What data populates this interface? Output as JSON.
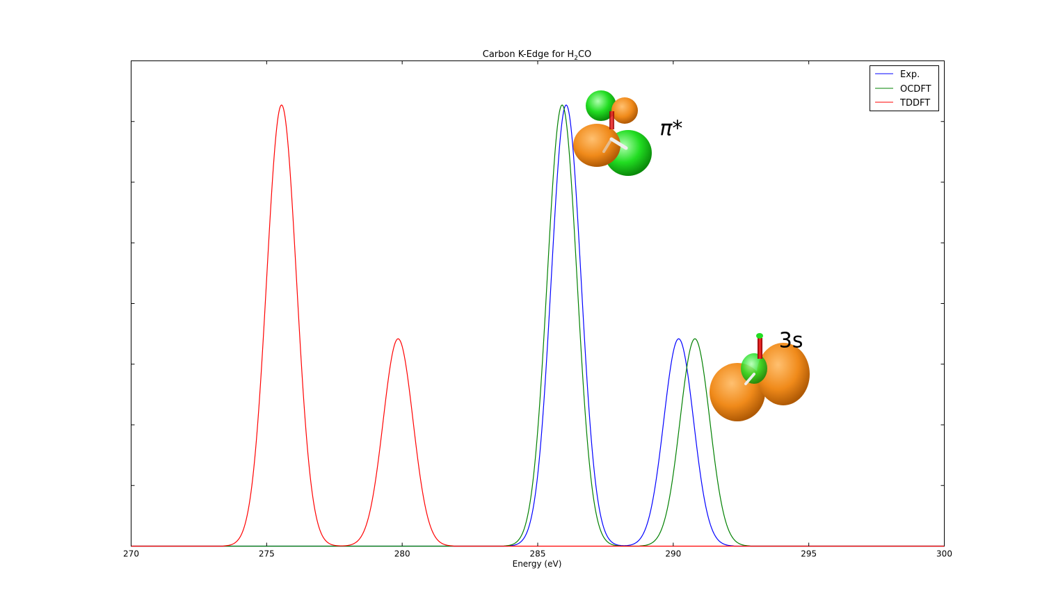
{
  "chart_data": {
    "type": "line",
    "title": "Carbon K-Edge for H",
    "title_subscript": "2",
    "title_suffix": "CO",
    "xlabel": "Energy (eV)",
    "ylabel": "",
    "xlim": [
      270,
      300
    ],
    "ylim": [
      0,
      1.1
    ],
    "xticks": [
      270,
      275,
      280,
      285,
      290,
      295,
      300
    ],
    "xtick_labels": [
      "270",
      "275",
      "280",
      "285",
      "290",
      "295",
      "300"
    ],
    "yticks_labeled": false,
    "grid": false,
    "legend_position": "top-right",
    "peak_width_sigma_eV": 0.55,
    "series": [
      {
        "name": "Exp.",
        "color": "#0000ff",
        "peaks": [
          {
            "x": 286.05,
            "y": 1.0
          },
          {
            "x": 290.2,
            "y": 0.47
          }
        ]
      },
      {
        "name": "OCDFT",
        "color": "#008000",
        "peaks": [
          {
            "x": 285.9,
            "y": 1.0
          },
          {
            "x": 290.8,
            "y": 0.47
          }
        ]
      },
      {
        "name": "TDDFT",
        "color": "#ff0000",
        "peaks": [
          {
            "x": 275.55,
            "y": 1.0
          },
          {
            "x": 279.85,
            "y": 0.47
          }
        ]
      }
    ],
    "annotations": [
      {
        "text": "π*",
        "x": 289.5,
        "y": 0.95
      },
      {
        "text": "3s",
        "x": 293.9,
        "y": 0.47
      }
    ],
    "orbital_colors": {
      "lobe_positive": "#22dd22",
      "lobe_negative": "#f08a1a",
      "oxygen": "#dd2222",
      "hydrogen": "#eeeeee"
    }
  }
}
